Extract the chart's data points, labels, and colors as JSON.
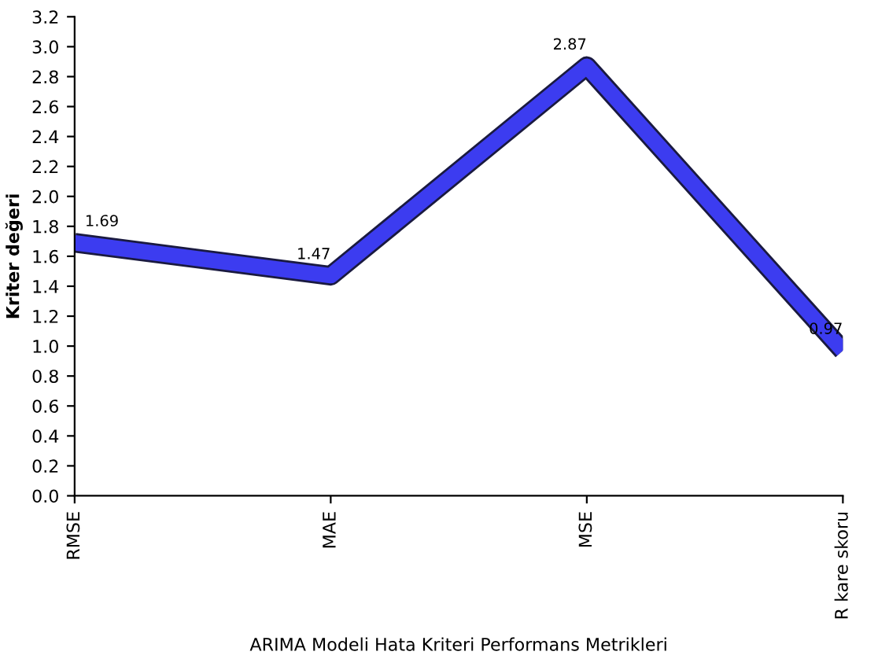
{
  "chart_data": {
    "type": "line",
    "xlabel": "ARIMA Modeli Hata Kriteri Performans Metrikleri",
    "ylabel": "Kriter değeri",
    "categories": [
      "RMSE",
      "MAE",
      "MSE",
      "R kare skoru"
    ],
    "series": [
      {
        "color": "#3c3cf0",
        "values": [
          1.69,
          1.47,
          2.87,
          0.97
        ]
      }
    ],
    "ylim": [
      0,
      3.2
    ],
    "yticks": [
      {
        "value": 0,
        "label": "0.0"
      },
      0.2,
      0.4,
      0.6,
      0.8,
      {
        "value": 1,
        "label": "1.0"
      },
      1.2,
      1.4,
      1.6,
      1.8,
      {
        "value": 2,
        "label": "2.0"
      },
      2.2,
      2.4,
      2.6,
      2.8,
      {
        "value": 3,
        "label": "3.0"
      },
      3.2
    ],
    "data_labels": true,
    "grid": false,
    "marker": "none",
    "line_style": "solid"
  }
}
